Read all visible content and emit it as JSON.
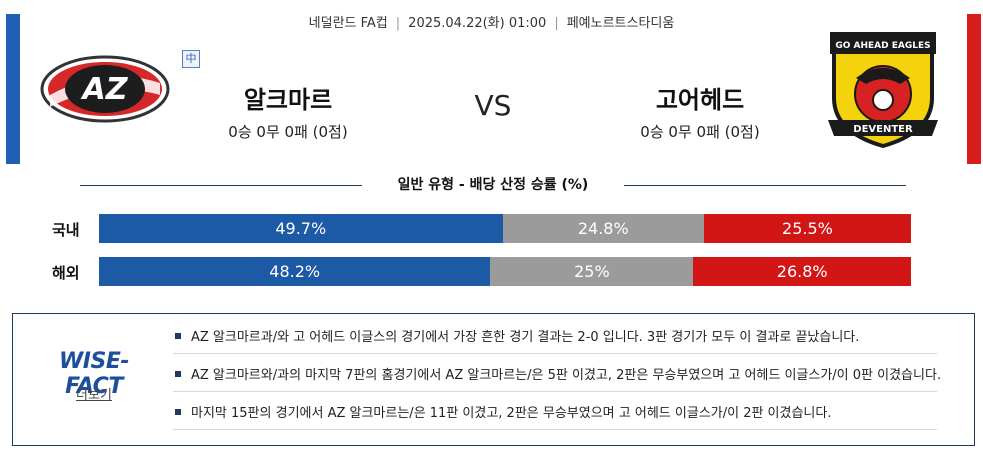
{
  "match": {
    "competition": "네덜란드 FA컵",
    "datetime": "2025.04.22(화) 01:00",
    "venue": "페예노르트스타디움",
    "league_badge": "中",
    "vs": "VS"
  },
  "home": {
    "name": "알크마르",
    "record": "0승 0무 0패 (0점)",
    "logo_text": "AZ",
    "color": "#d91c1c"
  },
  "away": {
    "name": "고어헤드",
    "record": "0승 0무 0패 (0점)",
    "logo_top_text": "GO AHEAD EAGLES",
    "logo_bottom_text": "DEVENTER",
    "color": "#d91c1c"
  },
  "odds": {
    "title": "일반 유형 - 배당 산정 승률 (%)",
    "rows": [
      {
        "label": "국내",
        "win": "49.7%",
        "draw": "24.8%",
        "lose": "25.5%",
        "win_value": 49.7,
        "draw_value": 24.8,
        "lose_value": 25.5
      },
      {
        "label": "해외",
        "win": "48.2%",
        "draw": "25%",
        "lose": "26.8%",
        "win_value": 48.2,
        "draw_value": 25,
        "lose_value": 26.8
      }
    ],
    "colors": {
      "win": "#1d5aa6",
      "draw": "#9b9b9b",
      "lose": "#d21616"
    }
  },
  "wise_fact": {
    "logo": "WISE-FACT",
    "more": "더보기",
    "items": [
      "AZ 알크마르과/와 고 어헤드 이글스의 경기에서 가장 흔한 경기 결과는 2-0 입니다. 3판 경기가 모두 이 결과로 끝났습니다.",
      "AZ 알크마르와/과의 마지막 7판의 홈경기에서 AZ 알크마르는/은 5판 이겼고, 2판은 무승부였으며 고 어헤드 이글스가/이 0판 이겼습니다.",
      "마지막 15판의 경기에서 AZ 알크마르는/은 11판 이겼고, 2판은 무승부였으며 고 어헤드 이글스가/이 2판 이겼습니다."
    ]
  }
}
